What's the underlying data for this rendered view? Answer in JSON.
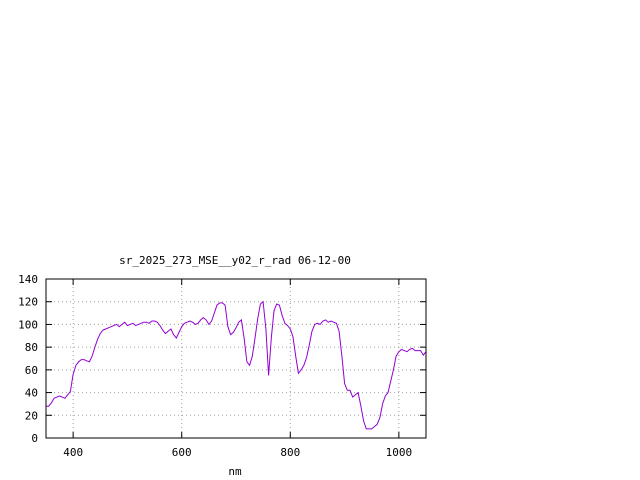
{
  "chart_data": {
    "type": "line",
    "title": "sr_2025_273_MSE__y02_r_rad 06-12-00",
    "xlabel": "nm",
    "ylabel": "",
    "xlim": [
      350,
      1050
    ],
    "ylim": [
      0,
      140
    ],
    "xticks": [
      400,
      600,
      800,
      1000
    ],
    "yticks": [
      0,
      20,
      40,
      60,
      80,
      100,
      120,
      140
    ],
    "grid": true,
    "series": [
      {
        "color": "#9400d3",
        "x": [
          350,
          355,
          360,
          365,
          370,
          375,
          380,
          385,
          390,
          395,
          400,
          405,
          410,
          415,
          420,
          425,
          430,
          435,
          440,
          445,
          450,
          455,
          460,
          465,
          470,
          475,
          480,
          485,
          490,
          495,
          500,
          505,
          510,
          515,
          520,
          525,
          530,
          535,
          540,
          545,
          550,
          555,
          560,
          565,
          570,
          575,
          580,
          585,
          590,
          595,
          600,
          605,
          610,
          615,
          620,
          625,
          630,
          635,
          640,
          645,
          650,
          655,
          660,
          665,
          670,
          675,
          680,
          685,
          690,
          695,
          700,
          705,
          710,
          715,
          720,
          725,
          730,
          735,
          740,
          745,
          750,
          755,
          760,
          765,
          770,
          775,
          780,
          785,
          790,
          795,
          800,
          805,
          810,
          815,
          820,
          825,
          830,
          835,
          840,
          845,
          850,
          855,
          860,
          865,
          870,
          875,
          880,
          885,
          890,
          895,
          900,
          905,
          910,
          915,
          920,
          925,
          930,
          935,
          940,
          945,
          950,
          955,
          960,
          965,
          970,
          975,
          980,
          985,
          990,
          995,
          1000,
          1005,
          1010,
          1015,
          1020,
          1025,
          1030,
          1035,
          1040,
          1045,
          1050
        ],
        "y": [
          28,
          28,
          31,
          35,
          36,
          37,
          36,
          35,
          38,
          41,
          56,
          64,
          67,
          69,
          69,
          68,
          67,
          72,
          80,
          87,
          92,
          95,
          96,
          97,
          98,
          99,
          100,
          98,
          100,
          102,
          99,
          100,
          101,
          99,
          100,
          101,
          102,
          102,
          101,
          103,
          103,
          102,
          99,
          95,
          92,
          94,
          96,
          91,
          88,
          93,
          98,
          101,
          102,
          103,
          102,
          100,
          101,
          104,
          106,
          104,
          100,
          103,
          110,
          117,
          119,
          119,
          117,
          98,
          91,
          93,
          97,
          102,
          104,
          88,
          67,
          64,
          72,
          88,
          105,
          118,
          120,
          96,
          55,
          88,
          112,
          118,
          117,
          108,
          101,
          99,
          96,
          89,
          72,
          57,
          60,
          64,
          71,
          82,
          94,
          100,
          101,
          100,
          103,
          104,
          102,
          103,
          102,
          101,
          94,
          72,
          48,
          42,
          42,
          36,
          38,
          40,
          28,
          15,
          8,
          8,
          8,
          10,
          12,
          18,
          30,
          37,
          40,
          50,
          60,
          72,
          76,
          78,
          77,
          76,
          78,
          79,
          77,
          77,
          77,
          73,
          76
        ]
      }
    ]
  }
}
